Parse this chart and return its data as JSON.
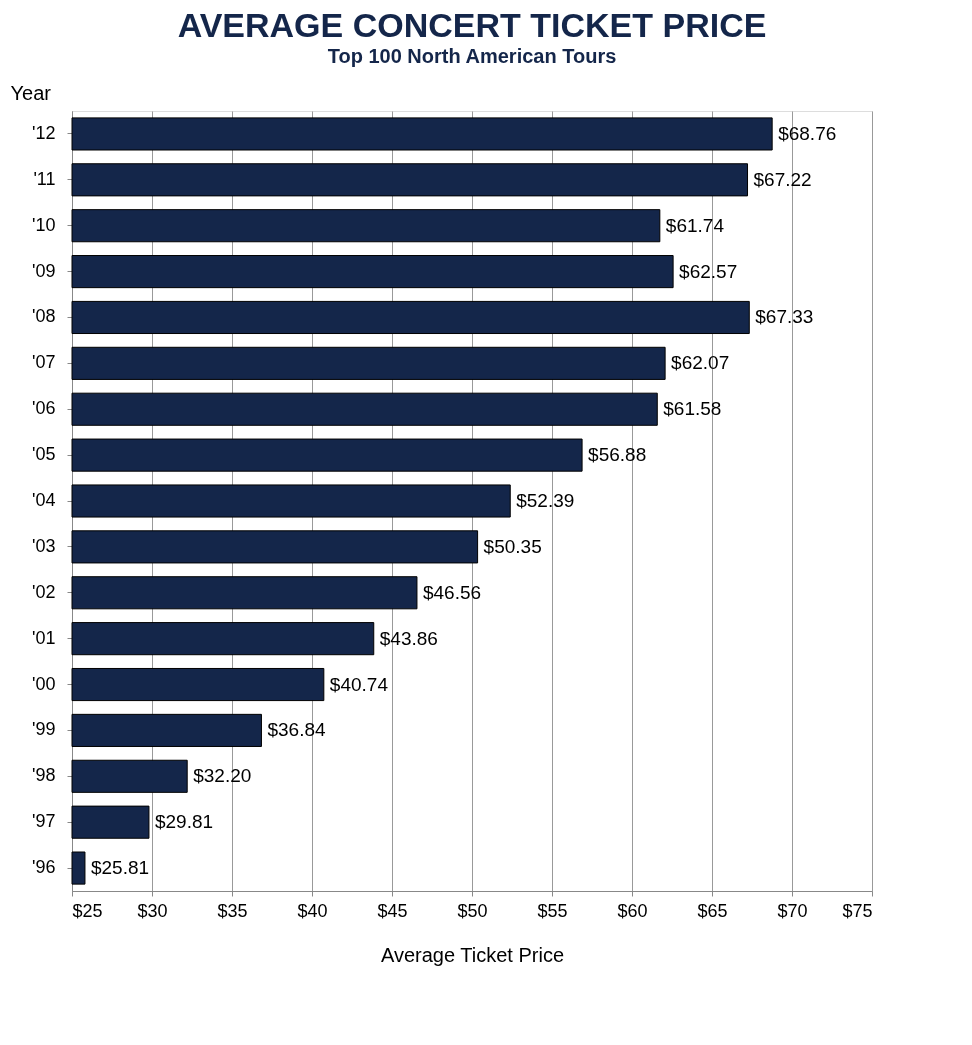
{
  "chart_data": {
    "type": "bar",
    "orientation": "horizontal",
    "title": "AVERAGE CONCERT TICKET PRICE",
    "subtitle": "Top 100 North American Tours",
    "xlabel": "Average Ticket Price",
    "ylabel": "Year",
    "categories": [
      "'12",
      "'11",
      "'10",
      "'09",
      "'08",
      "'07",
      "'06",
      "'05",
      "'04",
      "'03",
      "'02",
      "'01",
      "'00",
      "'99",
      "'98",
      "'97",
      "'96"
    ],
    "values": [
      68.76,
      67.22,
      61.74,
      62.57,
      67.33,
      62.07,
      61.58,
      56.88,
      52.39,
      50.35,
      46.56,
      43.86,
      40.74,
      36.84,
      32.2,
      29.81,
      25.81
    ],
    "value_labels": [
      "$68.76",
      "$67.22",
      "$61.74",
      "$62.57",
      "$67.33",
      "$62.07",
      "$61.58",
      "$56.88",
      "$52.39",
      "$50.35",
      "$46.56",
      "$43.86",
      "$40.74",
      "$36.84",
      "$32.20",
      "$29.81",
      "$25.81"
    ],
    "color": "#14264a",
    "xlim": [
      25,
      75
    ],
    "xticks": [
      {
        "value": 25,
        "label": "$25"
      },
      {
        "value": 30,
        "label": "$30"
      },
      {
        "value": 35,
        "label": "$35"
      },
      {
        "value": 40,
        "label": "$40"
      },
      {
        "value": 45,
        "label": "$45"
      },
      {
        "value": 50,
        "label": "$50"
      },
      {
        "value": 55,
        "label": "$55"
      },
      {
        "value": 60,
        "label": "$60"
      },
      {
        "value": 65,
        "label": "$65"
      },
      {
        "value": 70,
        "label": "$70"
      },
      {
        "value": 75,
        "label": "$75"
      }
    ],
    "grid": "x"
  }
}
